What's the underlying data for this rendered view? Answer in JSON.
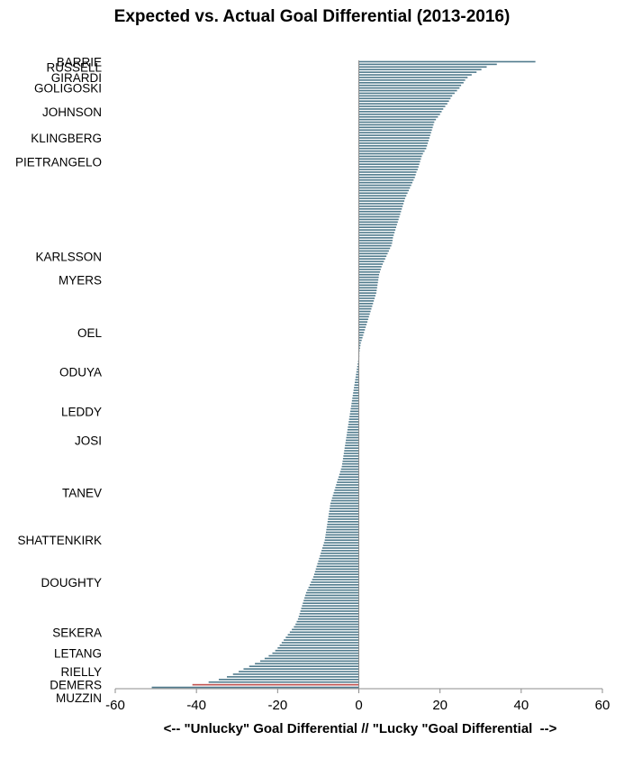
{
  "chart_data": {
    "type": "bar",
    "orientation": "horizontal",
    "title": "Expected vs. Actual Goal Differential  (2013-2016)",
    "xlabel": "<-- \"Unlucky\" Goal Differential // \"Lucky \"Goal Differential  -->",
    "ylabel": "",
    "xlim": [
      -60,
      60
    ],
    "xticks": [
      "-60",
      "-40",
      "-20",
      "0",
      "20",
      "40",
      "60"
    ],
    "grid": false,
    "legend": "none",
    "colors": {
      "bar": "#4f7a8c",
      "highlight": "#c0504d"
    },
    "labeled_players": [
      {
        "name": "BARRIE",
        "rank": 1
      },
      {
        "name": "RUSSELL",
        "rank": 3
      },
      {
        "name": "GIRARDI",
        "rank": 7
      },
      {
        "name": "GOLIGOSKI",
        "rank": 11
      },
      {
        "name": "JOHNSON",
        "rank": 20
      },
      {
        "name": "KLINGBERG",
        "rank": 30
      },
      {
        "name": "PIETRANGELO",
        "rank": 39
      },
      {
        "name": "KARLSSON",
        "rank": 75
      },
      {
        "name": "MYERS",
        "rank": 84
      },
      {
        "name": "OEL",
        "rank": 104
      },
      {
        "name": "ODUYA",
        "rank": 119
      },
      {
        "name": "LEDDY",
        "rank": 134
      },
      {
        "name": "JOSI",
        "rank": 145
      },
      {
        "name": "TANEV",
        "rank": 165
      },
      {
        "name": "SHATTENKIRK",
        "rank": 183
      },
      {
        "name": "DOUGHTY",
        "rank": 199
      },
      {
        "name": "SEKERA",
        "rank": 218
      },
      {
        "name": "LETANG",
        "rank": 226
      },
      {
        "name": "RIELLY",
        "rank": 233
      },
      {
        "name": "DEMERS",
        "rank": 238
      },
      {
        "name": "MUZZIN",
        "rank": 243
      }
    ],
    "values": [
      43.5,
      34,
      31.5,
      30.2,
      29,
      27.8,
      26.8,
      26.2,
      25.8,
      25.2,
      24.8,
      24.2,
      23.6,
      23,
      22.6,
      22.2,
      21.8,
      21.3,
      20.8,
      20.4,
      20,
      19.5,
      19,
      18.6,
      18.4,
      18.2,
      18,
      17.8,
      17.6,
      17.4,
      17.2,
      17,
      16.8,
      16.6,
      16.2,
      15.8,
      15.5,
      15.3,
      15.1,
      14.9,
      14.7,
      14.5,
      14.2,
      14,
      13.8,
      13.5,
      13.2,
      12.9,
      12.6,
      12.3,
      12,
      11.7,
      11.4,
      11.2,
      11,
      10.8,
      10.6,
      10.4,
      10.2,
      10,
      9.8,
      9.6,
      9.4,
      9.2,
      9,
      8.8,
      8.6,
      8.4,
      8.3,
      8.2,
      8,
      7.7,
      7.4,
      7.1,
      6.8,
      6.5,
      6.2,
      5.9,
      5.6,
      5.4,
      5.2,
      5,
      4.9,
      4.8,
      4.7,
      4.6,
      4.5,
      4.4,
      4.3,
      4.1,
      3.9,
      3.7,
      3.5,
      3.3,
      3.1,
      2.9,
      2.7,
      2.5,
      2.3,
      2.1,
      1.9,
      1.7,
      1.5,
      1.3,
      1.1,
      0.9,
      0.7,
      0.5,
      0.4,
      0.3,
      0.2,
      0.1,
      0.1,
      -0.1,
      -0.2,
      -0.3,
      -0.4,
      -0.5,
      -0.6,
      -0.7,
      -0.8,
      -0.9,
      -1,
      -1.1,
      -1.2,
      -1.3,
      -1.4,
      -1.5,
      -1.6,
      -1.7,
      -1.8,
      -1.9,
      -2,
      -2.1,
      -2.2,
      -2.3,
      -2.4,
      -2.5,
      -2.6,
      -2.7,
      -2.8,
      -2.9,
      -3,
      -3.1,
      -3.2,
      -3.3,
      -3.4,
      -3.5,
      -3.6,
      -3.7,
      -3.8,
      -3.9,
      -4,
      -4.1,
      -4.2,
      -4.4,
      -4.6,
      -4.8,
      -5,
      -5.2,
      -5.4,
      -5.6,
      -5.8,
      -6,
      -6.2,
      -6.4,
      -6.6,
      -6.8,
      -7,
      -7.1,
      -7.2,
      -7.3,
      -7.4,
      -7.5,
      -7.6,
      -7.7,
      -7.8,
      -7.9,
      -8,
      -8.1,
      -8.2,
      -8.3,
      -8.4,
      -8.6,
      -8.8,
      -9,
      -9.2,
      -9.4,
      -9.6,
      -9.8,
      -10,
      -10.2,
      -10.4,
      -10.6,
      -10.8,
      -11,
      -11.2,
      -11.5,
      -11.8,
      -12.1,
      -12.4,
      -12.7,
      -13,
      -13.2,
      -13.4,
      -13.6,
      -13.8,
      -14,
      -14.2,
      -14.4,
      -14.6,
      -14.8,
      -15,
      -15.3,
      -15.6,
      -16,
      -16.5,
      -17,
      -17.5,
      -18,
      -18.5,
      -19,
      -19.5,
      -20,
      -20.6,
      -21.3,
      -22.2,
      -23.2,
      -24.3,
      -25.6,
      -27,
      -28.4,
      -29.6,
      -31,
      -32.5,
      -34.5,
      -37,
      -41,
      -51
    ],
    "highlight_rank": 238
  }
}
